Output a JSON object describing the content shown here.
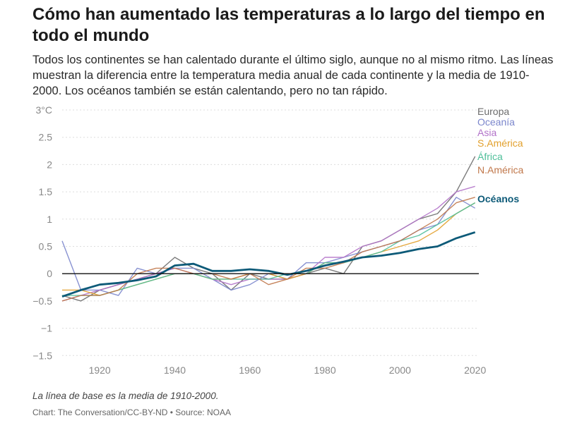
{
  "header": {
    "title": "Cómo han aumentado las temperaturas a lo largo del tiempo en todo el mundo",
    "subtitle": "Todos los continentes se han calentado durante el último siglo, aunque no al mismo ritmo. Las líneas muestran la diferencia entre la temperatura media anual de cada continente y la media de 1910-2000. Los océanos también se están calentando, pero no tan rápido."
  },
  "footer": {
    "note": "La línea de base es la media de 1910-2000.",
    "credit": "Chart: The Conversation/CC-BY-ND • Source: NOAA"
  },
  "chart_data": {
    "type": "line",
    "xlim": [
      1910,
      2021
    ],
    "ylim": [
      -1.6,
      3.0
    ],
    "x_ticks": [
      1920,
      1940,
      1960,
      1980,
      2000,
      2020
    ],
    "y_ticks": [
      -1.5,
      -1,
      -0.5,
      0,
      0.5,
      1,
      1.5,
      2,
      2.5,
      3
    ],
    "y_tick_labels": [
      "−1.5",
      "−1",
      "−0.5",
      "0",
      "0.5",
      "1",
      "1.5",
      "2",
      "2.5",
      "3°C"
    ],
    "grid": "horizontal",
    "legend": "right",
    "x": [
      1910,
      1915,
      1920,
      1925,
      1930,
      1935,
      1940,
      1945,
      1950,
      1955,
      1960,
      1965,
      1970,
      1975,
      1980,
      1985,
      1990,
      1995,
      2000,
      2005,
      2010,
      2015,
      2020
    ],
    "series": [
      {
        "name": "Europa",
        "color": "#6d6d6d",
        "values": [
          -0.4,
          -0.5,
          -0.3,
          -0.2,
          -0.1,
          0.0,
          0.3,
          0.1,
          0.0,
          -0.3,
          0.0,
          -0.1,
          -0.1,
          0.0,
          0.1,
          0.0,
          0.5,
          0.6,
          0.8,
          1.0,
          1.1,
          1.5,
          2.15
        ]
      },
      {
        "name": "Oceanía",
        "color": "#7b86cc",
        "values": [
          0.6,
          -0.3,
          -0.3,
          -0.4,
          0.1,
          0.0,
          0.1,
          0.1,
          -0.1,
          -0.3,
          -0.2,
          0.0,
          -0.1,
          0.2,
          0.2,
          0.3,
          0.4,
          0.5,
          0.6,
          0.8,
          0.9,
          1.4,
          1.2
        ]
      },
      {
        "name": "Asia",
        "color": "#b273c9",
        "values": [
          -0.5,
          -0.4,
          -0.3,
          -0.2,
          -0.1,
          0.0,
          0.1,
          0.0,
          -0.1,
          -0.2,
          -0.1,
          -0.1,
          -0.1,
          0.0,
          0.3,
          0.3,
          0.5,
          0.6,
          0.8,
          1.0,
          1.2,
          1.5,
          1.6
        ]
      },
      {
        "name": "S.América",
        "color": "#e2a02c",
        "values": [
          -0.3,
          -0.3,
          -0.4,
          -0.3,
          -0.2,
          -0.1,
          0.0,
          0.0,
          -0.1,
          -0.1,
          0.0,
          0.0,
          -0.1,
          0.0,
          0.2,
          0.2,
          0.3,
          0.4,
          0.5,
          0.6,
          0.8,
          1.1,
          1.3
        ]
      },
      {
        "name": "África",
        "color": "#4fbf9a",
        "values": [
          -0.4,
          -0.4,
          -0.4,
          -0.3,
          -0.2,
          -0.1,
          0.0,
          0.0,
          -0.1,
          -0.1,
          -0.1,
          -0.1,
          0.0,
          0.0,
          0.2,
          0.2,
          0.3,
          0.4,
          0.6,
          0.7,
          0.9,
          1.1,
          1.3
        ]
      },
      {
        "name": "N.América",
        "color": "#c0774a",
        "values": [
          -0.5,
          -0.4,
          -0.4,
          -0.3,
          0.0,
          0.1,
          0.1,
          0.0,
          0.0,
          -0.1,
          0.0,
          -0.2,
          -0.1,
          0.1,
          0.1,
          0.2,
          0.4,
          0.5,
          0.6,
          0.8,
          1.0,
          1.3,
          1.4
        ]
      },
      {
        "name": "Océanos",
        "color": "#0d5a78",
        "values": [
          -0.42,
          -0.3,
          -0.2,
          -0.17,
          -0.12,
          -0.05,
          0.15,
          0.18,
          0.05,
          0.05,
          0.08,
          0.05,
          -0.02,
          0.05,
          0.15,
          0.22,
          0.3,
          0.33,
          0.38,
          0.45,
          0.5,
          0.65,
          0.76
        ]
      }
    ]
  }
}
